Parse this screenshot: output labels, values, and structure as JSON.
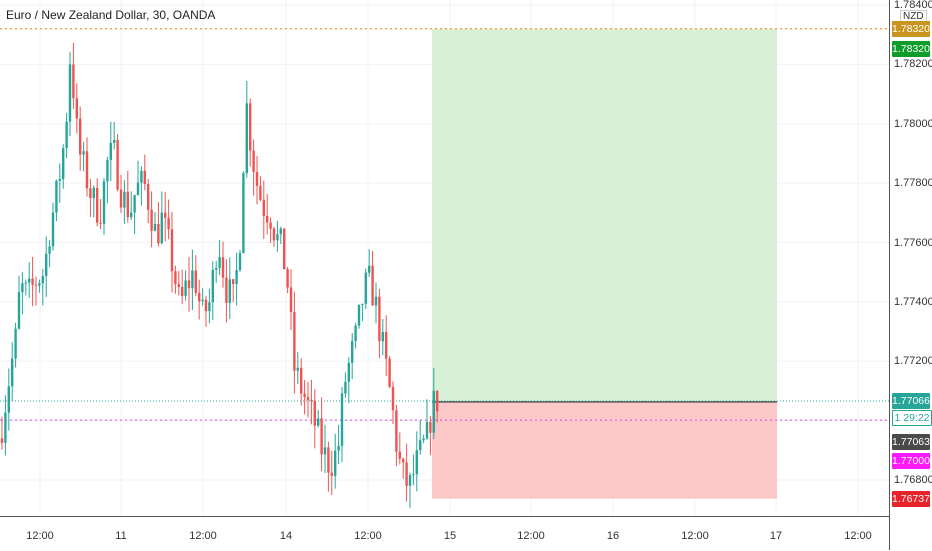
{
  "symbol_title": "Euro / New Zealand Dollar, 30, OANDA",
  "currency": "NZD",
  "colors": {
    "up": "#26a69a",
    "down": "#ef5350",
    "profit_zone": "#d8f0d8",
    "loss_zone": "#fcc8c8",
    "target_label": "#0f9d2a",
    "stop_label": "#e8242b",
    "current_label": "#26a69a",
    "countdown_label": "#4a4a4a",
    "alert_label": "#ff19ff",
    "high_label": "#c8961e"
  },
  "price_scale": {
    "ticks": [
      "1.78400",
      "1.78200",
      "1.78000",
      "1.77800",
      "1.77600",
      "1.77400",
      "1.77200",
      "1.76800"
    ],
    "labels": {
      "high": "1.78320",
      "target": "1.78320",
      "current": "1.77066",
      "countdown": "29:22",
      "countdown_prefix": "1",
      "entry": "1.77063",
      "alert": "1.77000",
      "stop": "1.76737"
    }
  },
  "time_scale": {
    "ticks": [
      "12:00",
      "11",
      "12:00",
      "14",
      "12:00",
      "15",
      "12:00",
      "16",
      "12:00",
      "17",
      "12:00"
    ]
  },
  "chart_data": {
    "type": "candlestick",
    "title": "Euro / New Zealand Dollar, 30, OANDA",
    "instrument": "EURNZD",
    "timeframe": "30",
    "source": "OANDA",
    "x_tick_labels": [
      "12:00",
      "11",
      "12:00",
      "14",
      "12:00",
      "15",
      "12:00",
      "16",
      "12:00",
      "17",
      "12:00"
    ],
    "y_tick_labels": [
      "1.78400",
      "1.78200",
      "1.78000",
      "1.77800",
      "1.77600",
      "1.77400",
      "1.77200",
      "1.76800"
    ],
    "ylim": [
      1.7656,
      1.7845
    ],
    "start_value": 1.7694,
    "end_value": 1.7707,
    "path": [
      [
        0,
        1.7694
      ],
      [
        8,
        1.7712
      ],
      [
        16,
        1.7728
      ],
      [
        20,
        1.7745
      ],
      [
        28,
        1.7742
      ],
      [
        36,
        1.7747
      ],
      [
        44,
        1.775
      ],
      [
        50,
        1.7765
      ],
      [
        56,
        1.7775
      ],
      [
        62,
        1.7788
      ],
      [
        66,
        1.78
      ],
      [
        70,
        1.7822
      ],
      [
        74,
        1.781
      ],
      [
        78,
        1.7792
      ],
      [
        84,
        1.7785
      ],
      [
        92,
        1.7775
      ],
      [
        100,
        1.777
      ],
      [
        108,
        1.7788
      ],
      [
        114,
        1.779
      ],
      [
        122,
        1.7776
      ],
      [
        130,
        1.777
      ],
      [
        136,
        1.7778
      ],
      [
        144,
        1.778
      ],
      [
        150,
        1.7772
      ],
      [
        156,
        1.7762
      ],
      [
        162,
        1.7768
      ],
      [
        168,
        1.776
      ],
      [
        174,
        1.775
      ],
      [
        180,
        1.7738
      ],
      [
        186,
        1.7745
      ],
      [
        194,
        1.775
      ],
      [
        202,
        1.7735
      ],
      [
        210,
        1.774
      ],
      [
        218,
        1.7762
      ],
      [
        226,
        1.7745
      ],
      [
        234,
        1.774
      ],
      [
        240,
        1.7762
      ],
      [
        246,
        1.7808
      ],
      [
        252,
        1.779
      ],
      [
        258,
        1.7778
      ],
      [
        264,
        1.7772
      ],
      [
        270,
        1.777
      ],
      [
        276,
        1.7762
      ],
      [
        282,
        1.7758
      ],
      [
        288,
        1.7745
      ],
      [
        294,
        1.7718
      ],
      [
        300,
        1.7712
      ],
      [
        308,
        1.7705
      ],
      [
        316,
        1.7698
      ],
      [
        322,
        1.769
      ],
      [
        330,
        1.7685
      ],
      [
        338,
        1.769
      ],
      [
        344,
        1.7712
      ],
      [
        350,
        1.772
      ],
      [
        356,
        1.7728
      ],
      [
        362,
        1.774
      ],
      [
        368,
        1.7748
      ],
      [
        374,
        1.7742
      ],
      [
        380,
        1.773
      ],
      [
        386,
        1.7718
      ],
      [
        392,
        1.7705
      ],
      [
        398,
        1.7688
      ],
      [
        404,
        1.768
      ],
      [
        410,
        1.7678
      ],
      [
        416,
        1.7685
      ],
      [
        422,
        1.769
      ],
      [
        428,
        1.7695
      ],
      [
        432,
        1.7705
      ],
      [
        438,
        1.7707
      ]
    ],
    "annotations": {
      "position_entry": 1.77063,
      "profit_target": 1.7832,
      "stop_loss": 1.76737,
      "alert_line": 1.77,
      "current_price": 1.77066,
      "horizontal_high_line": 1.7832
    }
  }
}
